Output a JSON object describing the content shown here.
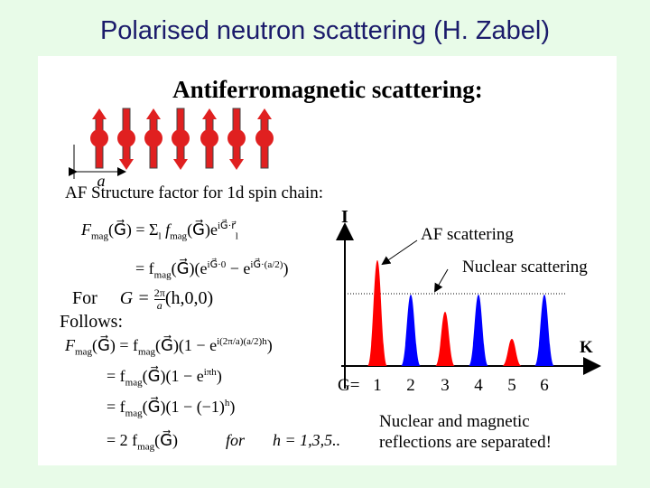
{
  "title": "Polarised neutron scattering (H. Zabel)",
  "heading": "Antiferromagnetic scattering:",
  "spacing_label": "a",
  "structure_factor_label": "AF Structure factor for 1d spin chain:",
  "equations": [
    [
      "F",
      "mag",
      "(G⃗) = Σ",
      "l",
      " f",
      "mag",
      "(G⃗)e",
      "iG⃗·r⃗",
      "l"
    ],
    [
      "= f",
      "mag",
      "(G⃗)(e",
      "iG⃗·0",
      " − e",
      "iG⃗·(a/2)",
      ")"
    ],
    [
      "For",
      "G = ",
      "2π",
      "a",
      "(h,0,0)"
    ],
    [
      "Follows:"
    ],
    [
      "F",
      "mag",
      "(G⃗) = f",
      "mag",
      "(G⃗)(1 − e",
      "i(2π/a)(a/2)h",
      ")"
    ],
    [
      "= f",
      "mag",
      "(G⃗)(1 − e",
      "iπh",
      ")"
    ],
    [
      "= f",
      "mag",
      "(G⃗)(1 − (−1)",
      "h",
      ")"
    ],
    [
      "= 2 f",
      "mag",
      "(G⃗)",
      "for",
      "h = 1,3,5.."
    ]
  ],
  "plot": {
    "y_label": "I",
    "x_label": "K",
    "g_prefix": "G=",
    "g_values": [
      1,
      2,
      3,
      4,
      5,
      6
    ],
    "af_label": "AF scattering",
    "nuclear_label": "Nuclear scattering"
  },
  "conclusion": [
    "Nuclear and magnetic",
    "reflections are separated!"
  ]
}
